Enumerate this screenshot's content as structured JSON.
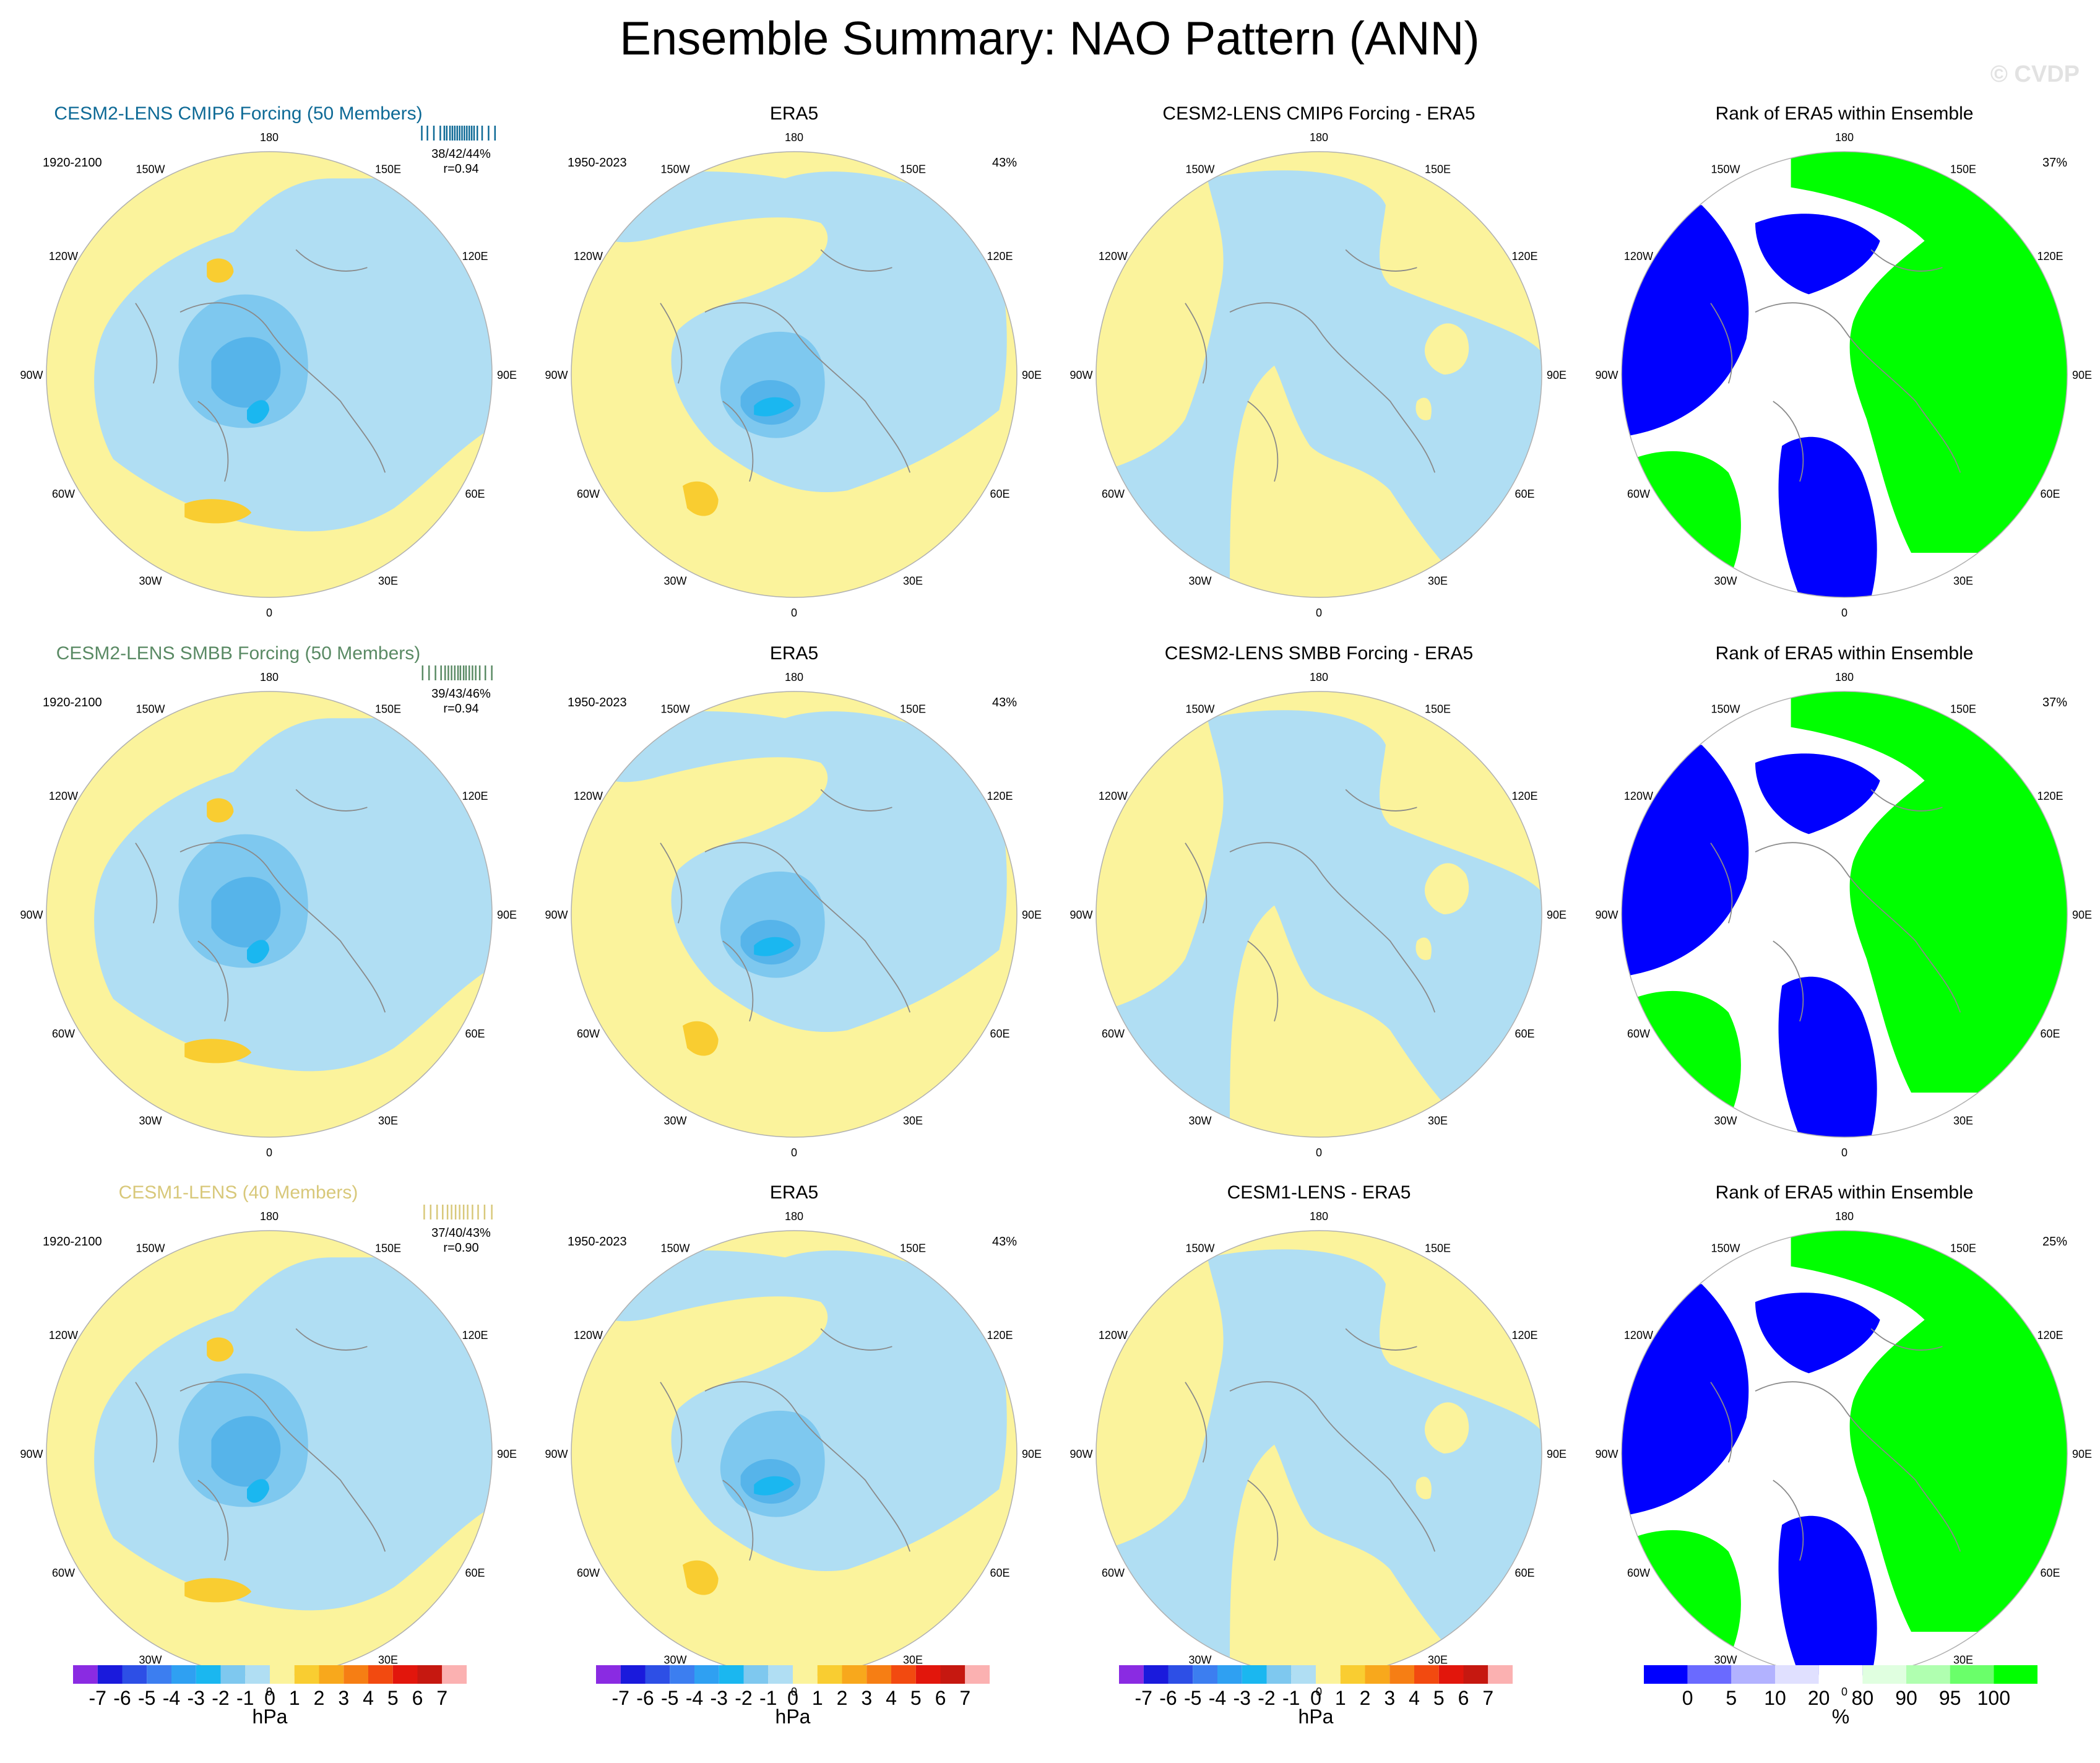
{
  "main_title": "Ensemble Summary: NAO Pattern (ANN)",
  "watermark": "© CVDP",
  "colors": {
    "neg1": "#b0def3",
    "neg2": "#7ec8ef",
    "neg3": "#56b4ea",
    "neg4": "#1ab7f0",
    "pos1": "#fbf39c",
    "pos2": "#f9cd31",
    "rank_blue": "#0000ff",
    "rank_green": "#00ff00",
    "coast": "#8a8a8a",
    "rim": "#b0b0b0"
  },
  "longitude_labels": [
    "180",
    "150E",
    "120E",
    "90E",
    "60E",
    "30E",
    "0",
    "30W",
    "60W",
    "90W",
    "120W",
    "150W"
  ],
  "rows": [
    {
      "model": {
        "title": "CESM2-LENS CMIP6 Forcing (50 Members)",
        "title_color": "#0e6a96",
        "period": "1920-2100",
        "stats": "38/42/44%",
        "corr": "r=0.94",
        "member_ticks": [
          0.05,
          0.12,
          0.2,
          0.28,
          0.33,
          0.36,
          0.4,
          0.43,
          0.46,
          0.49,
          0.52,
          0.55,
          0.58,
          0.61,
          0.64,
          0.67,
          0.7,
          0.74,
          0.8,
          0.88,
          0.96
        ]
      },
      "obs": {
        "title": "ERA5",
        "period": "1950-2023",
        "pct": "43%"
      },
      "diff": {
        "title": "CESM2-LENS CMIP6 Forcing - ERA5"
      },
      "rank": {
        "title": "Rank of ERA5 within Ensemble",
        "pct": "37%"
      }
    },
    {
      "model": {
        "title": "CESM2-LENS SMBB Forcing (50 Members)",
        "title_color": "#5a8a64",
        "period": "1920-2100",
        "stats": "39/43/46%",
        "corr": "r=0.94",
        "member_ticks": [
          0.06,
          0.14,
          0.22,
          0.29,
          0.34,
          0.38,
          0.42,
          0.46,
          0.5,
          0.53,
          0.57,
          0.6,
          0.64,
          0.68,
          0.72,
          0.77,
          0.84,
          0.92
        ]
      },
      "obs": {
        "title": "ERA5",
        "period": "1950-2023",
        "pct": "43%"
      },
      "diff": {
        "title": "CESM2-LENS SMBB Forcing - ERA5"
      },
      "rank": {
        "title": "Rank of ERA5 within Ensemble",
        "pct": "37%"
      }
    },
    {
      "model": {
        "title": "CESM1-LENS (40 Members)",
        "title_color": "#d8c87a",
        "period": "1920-2100",
        "stats": "37/40/43%",
        "corr": "r=0.90",
        "member_ticks": [
          0.08,
          0.16,
          0.24,
          0.31,
          0.37,
          0.42,
          0.47,
          0.52,
          0.57,
          0.62,
          0.68,
          0.75,
          0.83,
          0.92
        ]
      },
      "obs": {
        "title": "ERA5",
        "period": "1950-2023",
        "pct": "43%"
      },
      "diff": {
        "title": "CESM1-LENS - ERA5"
      },
      "rank": {
        "title": "Rank of ERA5 within Ensemble",
        "pct": "25%"
      }
    }
  ],
  "chart_data": {
    "type": "heatmap",
    "projection": "north-polar-stereographic",
    "variable": "NAO pattern (sea level pressure regression)",
    "season": "ANN",
    "pressure_colorbar": {
      "unit": "hPa",
      "colors": [
        "#8a2be2",
        "#1a1adc",
        "#2d4fe6",
        "#3c7ef0",
        "#2fa0f2",
        "#1ab7f0",
        "#7ec8ef",
        "#b0def3",
        "#fbf39c",
        "#f9cd31",
        "#f8a81c",
        "#f67e14",
        "#f24a10",
        "#e2160c",
        "#c61810",
        "#fbb1b1"
      ],
      "labels": [
        "-7",
        "-6",
        "-5",
        "-4",
        "-3",
        "-2",
        "-1",
        "0",
        "1",
        "2",
        "3",
        "4",
        "5",
        "6",
        "7"
      ]
    },
    "rank_colorbar": {
      "unit": "%",
      "colors": [
        "#0000ff",
        "#6a6aff",
        "#b2b2ff",
        "#e0e0ff",
        "#ffffff",
        "#e0ffe0",
        "#b0ffb0",
        "#6aff6a",
        "#00ff00"
      ],
      "labels": [
        "0",
        "5",
        "10",
        "20",
        "80",
        "90",
        "95",
        "100"
      ]
    }
  }
}
